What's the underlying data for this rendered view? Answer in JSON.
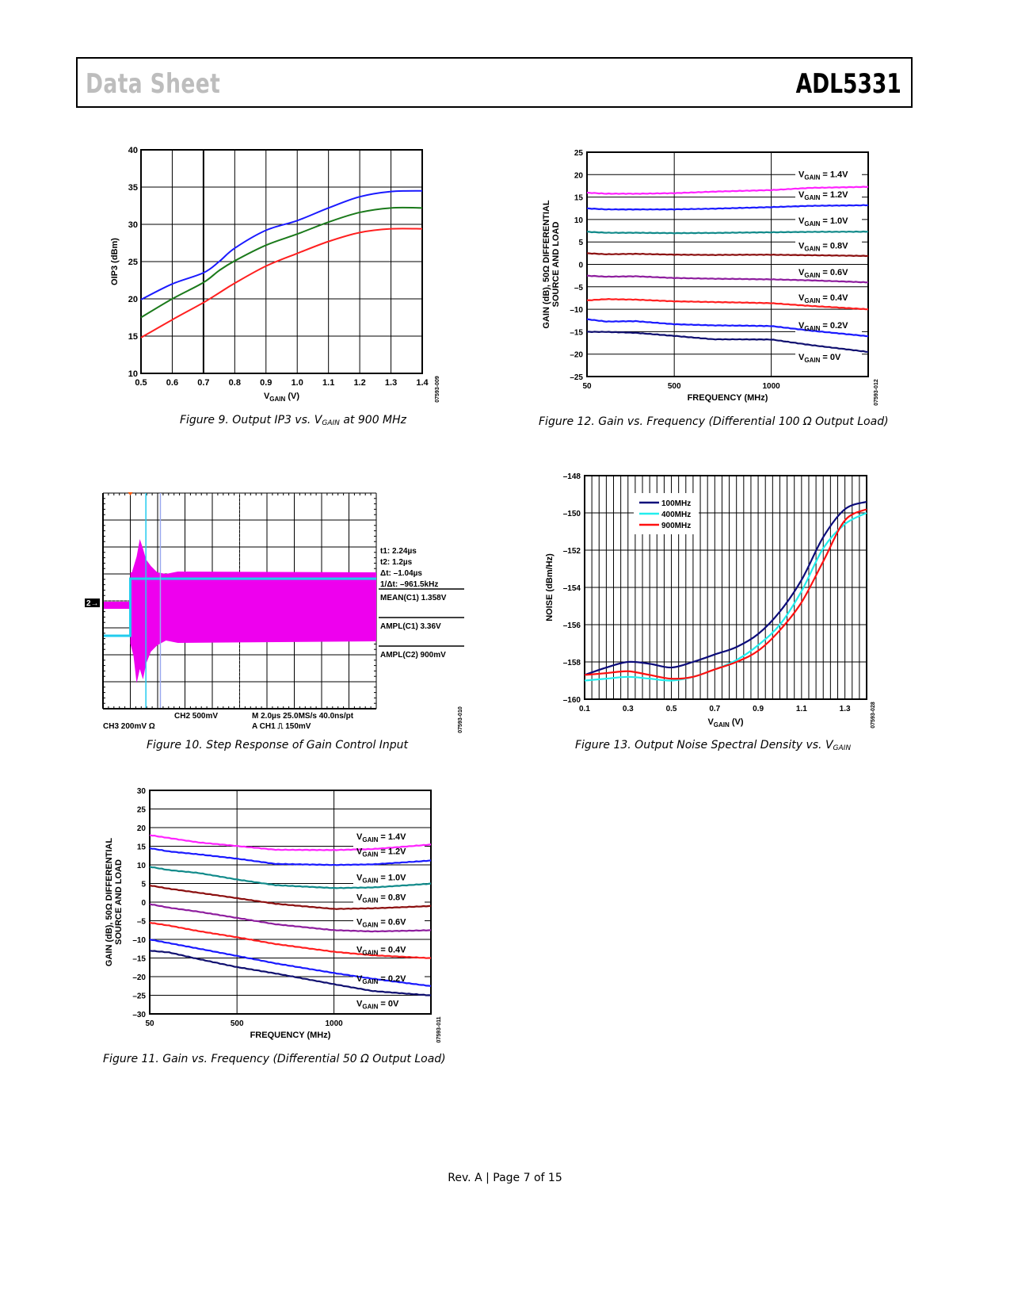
{
  "header": {
    "left": "Data Sheet",
    "right": "ADL5331"
  },
  "footer": "Rev. A | Page 7 of 15",
  "figures": {
    "fig9": {
      "caption_pre": "Figure 9. Output IP3 vs. V",
      "caption_sub": "GAIN",
      "caption_post": " at 900 MHz",
      "code": "07593-009"
    },
    "fig10": {
      "caption": "Figure 10. Step Response of Gain Control Input",
      "code": "07593-010"
    },
    "fig11": {
      "caption": "Figure 11. Gain vs. Frequency (Differential 50 Ω  Output Load)",
      "code": "07593-011"
    },
    "fig12": {
      "caption": "Figure 12. Gain vs. Frequency (Differential 100 Ω  Output Load)",
      "code": "07593-012"
    },
    "fig13": {
      "caption_pre": "Figure 13. Output Noise Spectral Density vs. V",
      "caption_sub": "GAIN",
      "code": "07593-028"
    }
  },
  "chart_data": [
    {
      "id": "fig9",
      "type": "line",
      "title": "Output IP3 vs. VGAIN at 900 MHz",
      "xlabel": "VGAIN (V)",
      "ylabel": "OIP3 (dBm)",
      "xlim": [
        0.5,
        1.4
      ],
      "ylim": [
        10,
        40
      ],
      "xticks": [
        "0.5",
        "0.6",
        "0.7",
        "0.8",
        "0.9",
        "1.0",
        "1.1",
        "1.2",
        "1.3",
        "1.4"
      ],
      "yticks": [
        "10",
        "15",
        "20",
        "25",
        "30",
        "35",
        "40"
      ],
      "grid": true,
      "x": [
        0.5,
        0.6,
        0.7,
        0.75,
        0.8,
        0.9,
        1.0,
        1.1,
        1.2,
        1.3,
        1.4
      ],
      "series": [
        {
          "name": "blue",
          "color": "#1a1aff",
          "values": [
            19.9,
            22.0,
            23.5,
            25.0,
            26.8,
            29.2,
            30.5,
            32.2,
            33.7,
            34.4,
            34.5
          ]
        },
        {
          "name": "green",
          "color": "#1b7a1b",
          "values": [
            17.5,
            20.0,
            22.2,
            23.8,
            25.1,
            27.2,
            28.7,
            30.3,
            31.6,
            32.2,
            32.2
          ]
        },
        {
          "name": "red",
          "color": "#ff2020",
          "values": [
            14.8,
            17.2,
            19.5,
            20.8,
            22.1,
            24.4,
            26.1,
            27.7,
            28.9,
            29.4,
            29.4
          ]
        }
      ]
    },
    {
      "id": "fig10",
      "type": "line",
      "title": "Step Response of Gain Control Input",
      "readouts": [
        "t1: 2.24µs",
        "t2: 1.2µs",
        "Δt: –1.04µs",
        "1/Δt: –961.5kHz"
      ],
      "measurements": [
        "MEAN(C1)  1.358V",
        "AMPL(C1)  3.36V",
        "AMPL(C2)  900mV"
      ],
      "channel_marker": "2→",
      "bottom_row1": [
        "CH2  500mV",
        "M 2.0µs 25.0MS/s   40.0ns/pt"
      ],
      "bottom_row2": [
        "CH3  200mV  Ω",
        "A  CH1  ⎍  150mV"
      ],
      "series": [
        {
          "name": "C1 RF output",
          "color": "#ee00ee"
        },
        {
          "name": "C2 gain control",
          "color": "#22ccee"
        }
      ]
    },
    {
      "id": "fig11",
      "type": "line",
      "title": "Gain vs. Frequency (Differential 50 Ω Output Load)",
      "xlabel": "FREQUENCY (MHz)",
      "ylabel_line1": "GAIN (dB), 50Ω DIFFERENTIAL",
      "ylabel_line2": "SOURCE AND LOAD",
      "xlim": [
        50,
        1500
      ],
      "ylim": [
        -30,
        30
      ],
      "xticks": [
        "50",
        "500",
        "1000"
      ],
      "xtick_values": [
        50,
        500,
        1000
      ],
      "yticks": [
        "30",
        "25",
        "20",
        "15",
        "10",
        "5",
        "0",
        "–5",
        "–10",
        "–15",
        "–20",
        "–25",
        "–30"
      ],
      "grid": true,
      "x": [
        50,
        150,
        300,
        500,
        700,
        1000,
        1200,
        1500
      ],
      "series": [
        {
          "name": "VGAIN = 1.4V",
          "color": "#ff22ff",
          "values": [
            18.0,
            17.2,
            16.0,
            15.0,
            14.0,
            14.0,
            14.3,
            15.5
          ]
        },
        {
          "name": "VGAIN = 1.2V",
          "color": "#1a1aff",
          "values": [
            14.5,
            13.6,
            12.8,
            11.6,
            10.2,
            10.0,
            10.2,
            11.2
          ]
        },
        {
          "name": "VGAIN = 1.0V",
          "color": "#118a8a",
          "values": [
            9.5,
            8.6,
            7.8,
            6.0,
            4.5,
            3.8,
            4.0,
            5.0
          ]
        },
        {
          "name": "VGAIN = 0.8V",
          "color": "#8b0f0f",
          "values": [
            4.5,
            3.6,
            2.5,
            1.0,
            -0.5,
            -1.8,
            -1.6,
            -1.0
          ]
        },
        {
          "name": "VGAIN = 0.6V",
          "color": "#8e1e9e",
          "values": [
            -0.5,
            -1.5,
            -2.6,
            -4.3,
            -6.0,
            -7.5,
            -7.8,
            -7.5
          ]
        },
        {
          "name": "VGAIN = 0.4V",
          "color": "#ff2020",
          "values": [
            -5.5,
            -6.3,
            -7.8,
            -9.5,
            -11.3,
            -13.3,
            -14.2,
            -15.0
          ]
        },
        {
          "name": "VGAIN = 0.2V",
          "color": "#1a1aff",
          "values": [
            -10.0,
            -11.0,
            -12.5,
            -14.5,
            -16.5,
            -19.0,
            -20.5,
            -22.5
          ]
        },
        {
          "name": "VGAIN = 0V",
          "color": "#101070",
          "values": [
            -13.0,
            -13.5,
            -15.3,
            -17.5,
            -19.2,
            -22.0,
            -23.8,
            -25.0
          ]
        }
      ]
    },
    {
      "id": "fig12",
      "type": "line",
      "title": "Gain vs. Frequency (Differential 100 Ω Output Load)",
      "xlabel": "FREQUENCY (MHz)",
      "ylabel_line1": "GAIN (dB), 50Ω DIFFERENTIAL",
      "ylabel_line2": "SOURCE AND LOAD",
      "xlim": [
        50,
        1500
      ],
      "ylim": [
        -25,
        25
      ],
      "xticks": [
        "50",
        "500",
        "1000"
      ],
      "xtick_values": [
        50,
        500,
        1000
      ],
      "yticks": [
        "25",
        "20",
        "15",
        "10",
        "5",
        "0",
        "–5",
        "–10",
        "–15",
        "–20",
        "–25"
      ],
      "grid": true,
      "x": [
        50,
        150,
        300,
        500,
        700,
        1000,
        1200,
        1500
      ],
      "series": [
        {
          "name": "VGAIN = 1.4V",
          "color": "#ff22ff",
          "values": [
            16.0,
            15.8,
            15.8,
            15.9,
            16.2,
            16.5,
            17.0,
            17.3
          ]
        },
        {
          "name": "VGAIN = 1.2V",
          "color": "#1a1aff",
          "values": [
            12.5,
            12.3,
            12.3,
            12.3,
            12.4,
            12.7,
            13.0,
            13.2
          ]
        },
        {
          "name": "VGAIN = 1.0V",
          "color": "#118a8a",
          "values": [
            7.3,
            7.1,
            7.1,
            7.0,
            7.0,
            7.1,
            7.2,
            7.3
          ]
        },
        {
          "name": "VGAIN = 0.8V",
          "color": "#8b0f0f",
          "values": [
            2.5,
            2.3,
            2.4,
            2.2,
            2.1,
            2.1,
            2.0,
            1.9
          ]
        },
        {
          "name": "VGAIN = 0.6V",
          "color": "#8e1e9e",
          "values": [
            -2.5,
            -2.7,
            -2.6,
            -3.0,
            -3.2,
            -3.4,
            -3.6,
            -4.0
          ]
        },
        {
          "name": "VGAIN = 0.4V",
          "color": "#ff2020",
          "values": [
            -8.0,
            -7.7,
            -7.8,
            -8.2,
            -8.4,
            -8.7,
            -9.3,
            -10.0
          ]
        },
        {
          "name": "VGAIN = 0.2V",
          "color": "#1a1aff",
          "values": [
            -12.2,
            -12.7,
            -12.6,
            -13.3,
            -13.6,
            -13.8,
            -14.8,
            -16.0
          ]
        },
        {
          "name": "VGAIN = 0V",
          "color": "#101070",
          "values": [
            -15.0,
            -15.0,
            -15.2,
            -15.9,
            -16.7,
            -16.8,
            -18.0,
            -19.5
          ]
        }
      ]
    },
    {
      "id": "fig13",
      "type": "line",
      "title": "Output Noise Spectral Density vs. VGAIN",
      "xlabel": "VGAIN (V)",
      "ylabel": "NOISE (dBm/Hz)",
      "xlim": [
        0.1,
        1.4
      ],
      "ylim": [
        -160,
        -148
      ],
      "xticks": [
        "0.1",
        "0.3",
        "0.5",
        "0.7",
        "0.9",
        "1.1",
        "1.3"
      ],
      "yticks": [
        "–148",
        "–150",
        "–152",
        "–154",
        "–156",
        "–158",
        "–160"
      ],
      "grid": true,
      "legend_position": "top-left",
      "x": [
        0.1,
        0.2,
        0.3,
        0.4,
        0.5,
        0.6,
        0.7,
        0.8,
        0.9,
        1.0,
        1.1,
        1.2,
        1.3,
        1.4
      ],
      "series": [
        {
          "name": "100MHz",
          "color": "#0c0c7a",
          "values": [
            -158.7,
            -158.3,
            -158.0,
            -158.1,
            -158.3,
            -158.0,
            -157.6,
            -157.2,
            -156.5,
            -155.3,
            -153.6,
            -151.3,
            -149.8,
            -149.4
          ]
        },
        {
          "name": "400MHz",
          "color": "#22eeee",
          "values": [
            -159.0,
            -158.9,
            -158.8,
            -158.9,
            -159.0,
            -158.8,
            -158.4,
            -157.9,
            -157.1,
            -156.0,
            -154.2,
            -151.9,
            -150.6,
            -150.0
          ]
        },
        {
          "name": "900MHz",
          "color": "#ff1010",
          "values": [
            -158.7,
            -158.6,
            -158.5,
            -158.7,
            -158.9,
            -158.8,
            -158.4,
            -158.0,
            -157.4,
            -156.3,
            -154.8,
            -152.6,
            -150.4,
            -149.8
          ]
        }
      ]
    }
  ]
}
